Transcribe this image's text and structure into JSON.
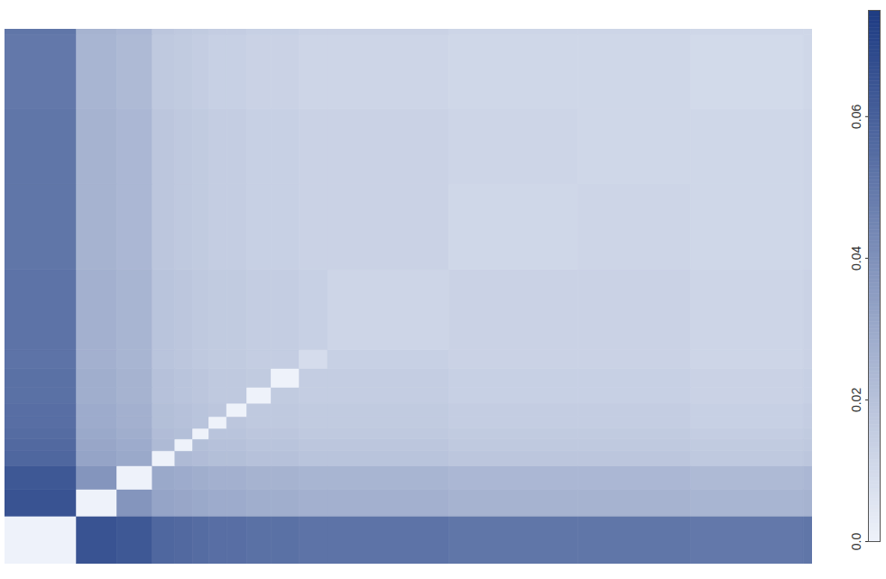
{
  "chart_data": {
    "type": "heatmap",
    "tick_labels": false,
    "x_edges": [
      0,
      8.9,
      13.9,
      18.3,
      21.1,
      23.3,
      25.3,
      27.5,
      30,
      33,
      36.5,
      40,
      55,
      71,
      85,
      98.9,
      100
    ],
    "y_edges": [
      0,
      8.9,
      13.9,
      18.3,
      21.1,
      23.3,
      25.3,
      27.5,
      30,
      33,
      36.5,
      40,
      55,
      71,
      85,
      98.9,
      100
    ],
    "xlim": [
      0,
      100
    ],
    "ylim": [
      0,
      100
    ],
    "values": [
      [
        0,
        0.065,
        0.063,
        0.057,
        0.056,
        0.055,
        0.054,
        0.054,
        0.053,
        0.053,
        0.052,
        0.052,
        0.051,
        0.051,
        0.05,
        0.051
      ],
      [
        0.065,
        0,
        0.038,
        0.032,
        0.031,
        0.03,
        0.029,
        0.029,
        0.028,
        0.028,
        0.027,
        0.027,
        0.026,
        0.026,
        0.025,
        0.026
      ],
      [
        0.063,
        0.038,
        0,
        0.03,
        0.029,
        0.028,
        0.027,
        0.027,
        0.026,
        0.026,
        0.025,
        0.025,
        0.024,
        0.024,
        0.023,
        0.024
      ],
      [
        0.057,
        0.032,
        0.03,
        0,
        0.023,
        0.022,
        0.021,
        0.021,
        0.02,
        0.02,
        0.019,
        0.019,
        0.018,
        0.018,
        0.017,
        0.018
      ],
      [
        0.056,
        0.031,
        0.029,
        0.023,
        0,
        0.021,
        0.02,
        0.02,
        0.019,
        0.019,
        0.018,
        0.018,
        0.017,
        0.017,
        0.016,
        0.017
      ],
      [
        0.055,
        0.03,
        0.028,
        0.022,
        0.021,
        0,
        0.019,
        0.019,
        0.018,
        0.018,
        0.017,
        0.017,
        0.016,
        0.016,
        0.015,
        0.016
      ],
      [
        0.054,
        0.029,
        0.027,
        0.021,
        0.02,
        0.019,
        0,
        0.018,
        0.017,
        0.017,
        0.016,
        0.016,
        0.015,
        0.015,
        0.014,
        0.015
      ],
      [
        0.054,
        0.029,
        0.027,
        0.021,
        0.02,
        0.019,
        0.018,
        0,
        0.017,
        0.017,
        0.016,
        0.016,
        0.015,
        0.015,
        0.014,
        0.015
      ],
      [
        0.053,
        0.028,
        0.026,
        0.02,
        0.019,
        0.018,
        0.017,
        0.017,
        0,
        0.016,
        0.015,
        0.015,
        0.014,
        0.014,
        0.013,
        0.014
      ],
      [
        0.053,
        0.028,
        0.026,
        0.02,
        0.019,
        0.018,
        0.017,
        0.017,
        0.016,
        0,
        0.015,
        0.015,
        0.014,
        0.014,
        0.013,
        0.014
      ],
      [
        0.052,
        0.027,
        0.025,
        0.019,
        0.018,
        0.017,
        0.016,
        0.016,
        0.015,
        0.015,
        0.009,
        0.014,
        0.013,
        0.013,
        0.012,
        0.013
      ],
      [
        0.052,
        0.027,
        0.025,
        0.019,
        0.018,
        0.017,
        0.016,
        0.016,
        0.015,
        0.015,
        0.014,
        0.012,
        0.013,
        0.013,
        0.012,
        0.013
      ],
      [
        0.051,
        0.026,
        0.024,
        0.018,
        0.017,
        0.016,
        0.015,
        0.015,
        0.014,
        0.014,
        0.013,
        0.013,
        0.011,
        0.012,
        0.011,
        0.012
      ],
      [
        0.051,
        0.026,
        0.024,
        0.018,
        0.017,
        0.016,
        0.015,
        0.015,
        0.014,
        0.014,
        0.013,
        0.013,
        0.012,
        0.011,
        0.011,
        0.012
      ],
      [
        0.05,
        0.025,
        0.023,
        0.017,
        0.016,
        0.015,
        0.014,
        0.014,
        0.013,
        0.013,
        0.012,
        0.012,
        0.011,
        0.011,
        0.01,
        0.011
      ],
      [
        0.051,
        0.026,
        0.024,
        0.018,
        0.017,
        0.016,
        0.015,
        0.015,
        0.014,
        0.014,
        0.013,
        0.013,
        0.012,
        0.012,
        0.011,
        0.011
      ]
    ],
    "colorbar": {
      "range": [
        0,
        0.075
      ],
      "ticks": [
        {
          "value": 0,
          "label": "0.0"
        },
        0.02,
        0.04,
        0.06
      ]
    }
  }
}
